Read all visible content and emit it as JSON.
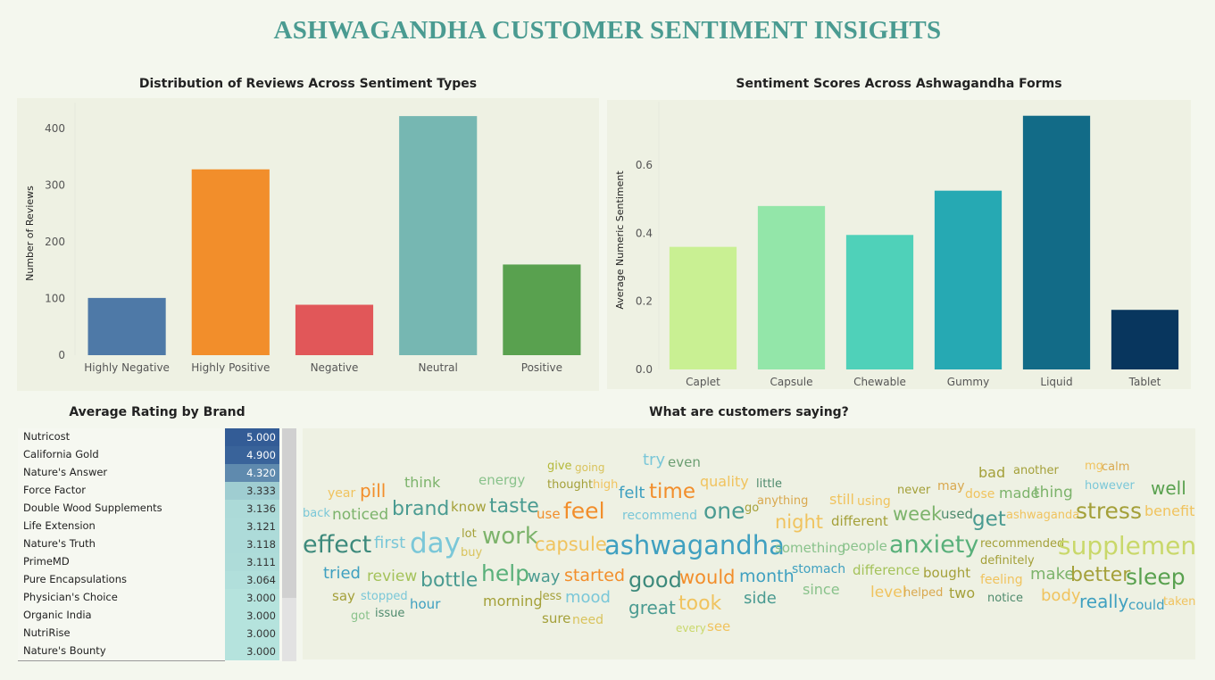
{
  "title": "ASHWAGANDHA CUSTOMER SENTIMENT INSIGHTS",
  "colors": {
    "title": "#4a9b91"
  },
  "chart_data": [
    {
      "type": "bar",
      "title": "Distribution of Reviews Across Sentiment Types",
      "xlabel": "",
      "ylabel": "Number of Reviews",
      "categories": [
        "Highly Negative",
        "Highly Positive",
        "Negative",
        "Neutral",
        "Positive"
      ],
      "values": [
        101,
        328,
        89,
        422,
        160
      ],
      "colors": [
        "#4e79a7",
        "#f28e2b",
        "#e15759",
        "#76b7b2",
        "#59a14f"
      ],
      "yticks": [
        "0",
        "100",
        "200",
        "300",
        "400"
      ],
      "ylim": [
        0,
        430
      ],
      "grid": false
    },
    {
      "type": "bar",
      "title": "Sentiment Scores Across Ashwagandha Forms",
      "xlabel": "",
      "ylabel": "Average Numeric Sentiment",
      "categories": [
        "Caplet",
        "Capsule",
        "Chewable",
        "Gummy",
        "Liquid",
        "Tablet"
      ],
      "values": [
        0.36,
        0.48,
        0.395,
        0.525,
        0.745,
        0.175
      ],
      "colors": [
        "#c9f093",
        "#93e6a9",
        "#4fd1b9",
        "#26a9b3",
        "#126b87",
        "#08365e"
      ],
      "yticks": [
        "0.0",
        "0.2",
        "0.4",
        "0.6"
      ],
      "ylim": [
        0,
        0.76
      ],
      "grid": false
    },
    {
      "type": "table",
      "title": "Average Rating by Brand",
      "rows": [
        {
          "brand": "Nutricost",
          "rating": "5.000",
          "value": 5.0
        },
        {
          "brand": "California Gold",
          "rating": "4.900",
          "value": 4.9
        },
        {
          "brand": "Nature's Answer",
          "rating": "4.320",
          "value": 4.32
        },
        {
          "brand": "Force Factor",
          "rating": "3.333",
          "value": 3.333
        },
        {
          "brand": "Double Wood Supplements",
          "rating": "3.136",
          "value": 3.136
        },
        {
          "brand": "Life Extension",
          "rating": "3.121",
          "value": 3.121
        },
        {
          "brand": "Nature's Truth",
          "rating": "3.118",
          "value": 3.118
        },
        {
          "brand": "PrimeMD",
          "rating": "3.111",
          "value": 3.111
        },
        {
          "brand": "Pure Encapsulations",
          "rating": "3.064",
          "value": 3.064
        },
        {
          "brand": "Physician's Choice",
          "rating": "3.000",
          "value": 3.0
        },
        {
          "brand": "Organic India",
          "rating": "3.000",
          "value": 3.0
        },
        {
          "brand": "NutriRise",
          "rating": "3.000",
          "value": 3.0
        },
        {
          "brand": "Nature's Bounty",
          "rating": "3.000",
          "value": 3.0
        }
      ]
    }
  ],
  "wordcloud": {
    "title": "What are customers saying?",
    "words": [
      {
        "text": "try",
        "color": "#7ac7d8"
      },
      {
        "text": "even",
        "color": "#6b9e72"
      },
      {
        "text": "give",
        "color": "#b4b83a"
      },
      {
        "text": "going",
        "color": "#d9c35c"
      },
      {
        "text": "quality",
        "color": "#f0c35e"
      },
      {
        "text": "little",
        "color": "#4e8a6d"
      },
      {
        "text": "bad",
        "color": "#a4a039"
      },
      {
        "text": "another",
        "color": "#a4a039"
      },
      {
        "text": "mg",
        "color": "#f0c35e"
      },
      {
        "text": "calm",
        "color": "#d9a84e"
      },
      {
        "text": "think",
        "color": "#7cb36b"
      },
      {
        "text": "energy",
        "color": "#89c28b"
      },
      {
        "text": "thought",
        "color": "#a4a039"
      },
      {
        "text": "high",
        "color": "#f0c35e"
      },
      {
        "text": "felt",
        "color": "#3fa0c0"
      },
      {
        "text": "time",
        "color": "#f28e2b"
      },
      {
        "text": "year",
        "color": "#f0c35e"
      },
      {
        "text": "pill",
        "color": "#f28e2b"
      },
      {
        "text": "still",
        "color": "#f0c35e"
      },
      {
        "text": "using",
        "color": "#f0c35e"
      },
      {
        "text": "never",
        "color": "#a4a039"
      },
      {
        "text": "may",
        "color": "#d9a84e"
      },
      {
        "text": "dose",
        "color": "#f0c35e"
      },
      {
        "text": "made",
        "color": "#7cb36b"
      },
      {
        "text": "thing",
        "color": "#7cb36b"
      },
      {
        "text": "however",
        "color": "#7ac7d8"
      },
      {
        "text": "well",
        "color": "#59a14f"
      },
      {
        "text": "back",
        "color": "#7ac7d8"
      },
      {
        "text": "noticed",
        "color": "#7cb36b"
      },
      {
        "text": "brand",
        "color": "#4a9b91"
      },
      {
        "text": "know",
        "color": "#a4a039"
      },
      {
        "text": "taste",
        "color": "#4a9b91"
      },
      {
        "text": "use",
        "color": "#f28e2b"
      },
      {
        "text": "feel",
        "color": "#f28e2b"
      },
      {
        "text": "recommend",
        "color": "#7ac7d8"
      },
      {
        "text": "one",
        "color": "#4a9b91"
      },
      {
        "text": "go",
        "color": "#a4a039"
      },
      {
        "text": "anything",
        "color": "#d9a84e"
      },
      {
        "text": "night",
        "color": "#f0c35e"
      },
      {
        "text": "different",
        "color": "#a4a039"
      },
      {
        "text": "week",
        "color": "#7cb36b"
      },
      {
        "text": "used",
        "color": "#4e8a6d"
      },
      {
        "text": "get",
        "color": "#4a9b91"
      },
      {
        "text": "ashwaganda",
        "color": "#f0c35e"
      },
      {
        "text": "stress",
        "color": "#a4a039"
      },
      {
        "text": "benefit",
        "color": "#f0c35e"
      },
      {
        "text": "effect",
        "color": "#3d8a7c"
      },
      {
        "text": "first",
        "color": "#7ac7d8"
      },
      {
        "text": "day",
        "color": "#7ac7d8"
      },
      {
        "text": "lot",
        "color": "#a4a039"
      },
      {
        "text": "buy",
        "color": "#d9c35c"
      },
      {
        "text": "work",
        "color": "#7cb36b"
      },
      {
        "text": "capsule",
        "color": "#f0c35e"
      },
      {
        "text": "ashwagandha",
        "color": "#3fa0c0"
      },
      {
        "text": "something",
        "color": "#89c28b"
      },
      {
        "text": "people",
        "color": "#89c28b"
      },
      {
        "text": "anxiety",
        "color": "#59b07a"
      },
      {
        "text": "recommended",
        "color": "#a4a039"
      },
      {
        "text": "supplement",
        "color": "#c9d86a"
      },
      {
        "text": "definitely",
        "color": "#a4a039"
      },
      {
        "text": "tried",
        "color": "#3fa0c0"
      },
      {
        "text": "review",
        "color": "#a4c25a"
      },
      {
        "text": "bottle",
        "color": "#4a9b91"
      },
      {
        "text": "help",
        "color": "#59b07a"
      },
      {
        "text": "way",
        "color": "#4a9b91"
      },
      {
        "text": "started",
        "color": "#f28e2b"
      },
      {
        "text": "good",
        "color": "#3d8a7c"
      },
      {
        "text": "would",
        "color": "#f28e2b"
      },
      {
        "text": "month",
        "color": "#3fa0c0"
      },
      {
        "text": "stomach",
        "color": "#3fa0c0"
      },
      {
        "text": "difference",
        "color": "#a4c25a"
      },
      {
        "text": "bought",
        "color": "#a4a039"
      },
      {
        "text": "make",
        "color": "#7cb36b"
      },
      {
        "text": "better",
        "color": "#a4a039"
      },
      {
        "text": "sleep",
        "color": "#59a14f"
      },
      {
        "text": "feeling",
        "color": "#f0c35e"
      },
      {
        "text": "say",
        "color": "#a4a039"
      },
      {
        "text": "stopped",
        "color": "#7ac7d8"
      },
      {
        "text": "hour",
        "color": "#3fa0c0"
      },
      {
        "text": "morning",
        "color": "#a4a039"
      },
      {
        "text": "less",
        "color": "#a4a039"
      },
      {
        "text": "mood",
        "color": "#7ac7d8"
      },
      {
        "text": "since",
        "color": "#89c28b"
      },
      {
        "text": "level",
        "color": "#f0c35e"
      },
      {
        "text": "helped",
        "color": "#d9a84e"
      },
      {
        "text": "two",
        "color": "#a4a039"
      },
      {
        "text": "notice",
        "color": "#4e8a6d"
      },
      {
        "text": "body",
        "color": "#f0c35e"
      },
      {
        "text": "really",
        "color": "#3fa0c0"
      },
      {
        "text": "could",
        "color": "#3fa0c0"
      },
      {
        "text": "taken",
        "color": "#f0c35e"
      },
      {
        "text": "got",
        "color": "#89c28b"
      },
      {
        "text": "issue",
        "color": "#4e8a6d"
      },
      {
        "text": "great",
        "color": "#4a9b91"
      },
      {
        "text": "took",
        "color": "#f0c35e"
      },
      {
        "text": "side",
        "color": "#4a9b91"
      },
      {
        "text": "sure",
        "color": "#a4a039"
      },
      {
        "text": "need",
        "color": "#d9c35c"
      },
      {
        "text": "every",
        "color": "#c9d86a"
      },
      {
        "text": "see",
        "color": "#f0c35e"
      }
    ]
  }
}
